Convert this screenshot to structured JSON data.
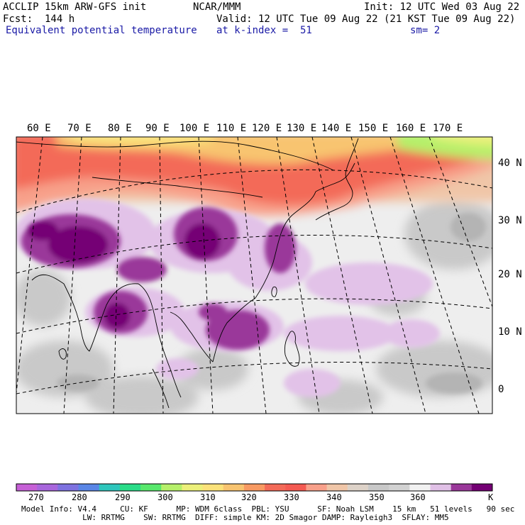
{
  "header": {
    "model": "ACCLIP 15km ARW-GFS init",
    "org": "NCAR/MMM",
    "init": "Init: 12 UTC Wed 03 Aug 22",
    "fcst": "Fcst:  144 h",
    "valid": "Valid: 12 UTC Tue 09 Aug 22 (21 KST Tue 09 Aug 22)",
    "field": "Equivalent potential temperature",
    "level": "at k-index =  51",
    "smoothing": "sm= 2"
  },
  "map": {
    "lon_labels": [
      "60 E",
      "70 E",
      "80 E",
      "90 E",
      "100 E",
      "110 E",
      "120 E",
      "130 E",
      "140 E",
      "150 E",
      "160 E",
      "170 E"
    ],
    "lat_labels": [
      "40 N",
      "30 N",
      "20 N",
      "10 N",
      "0"
    ]
  },
  "colorbar": {
    "labels": [
      "270",
      "280",
      "290",
      "300",
      "310",
      "320",
      "330",
      "340",
      "350",
      "360"
    ],
    "unit": "K",
    "colors": [
      "#c660d6",
      "#a866dc",
      "#7e72e0",
      "#5a86e6",
      "#2ec6bc",
      "#2adc88",
      "#58e86c",
      "#b6f06a",
      "#ecf07a",
      "#fbe27a",
      "#f8c470",
      "#f89a62",
      "#f36a58",
      "#f45a52",
      "#f8a08a",
      "#f0c6a8",
      "#ddd2c8",
      "#c8c8c8",
      "#d2d2d2",
      "#f1f1f1",
      "#e0c0e6",
      "#9a389a",
      "#740074"
    ]
  },
  "footer": {
    "line1": "Model Info: V4.4     CU: KF      MP: WDM 6class  PBL: YSU      SF: Noah LSM    15 km   51 levels   90 sec",
    "line2": "             LW: RRTMG    SW: RRTMG  DIFF: simple KM: 2D Smagor DAMP: Rayleigh3  SFLAY: MM5"
  }
}
